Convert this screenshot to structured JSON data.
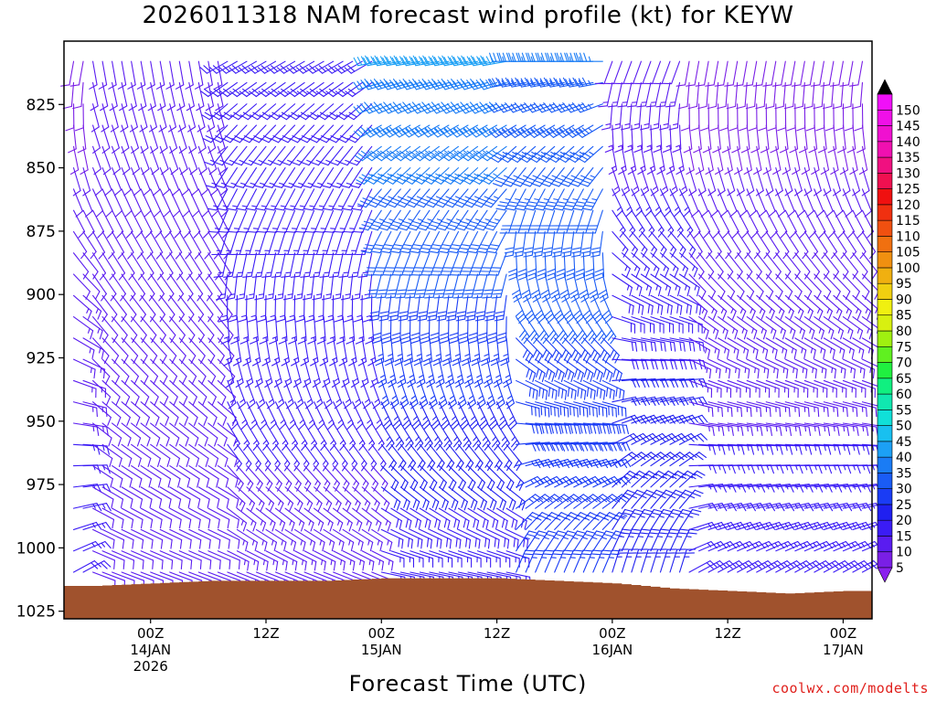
{
  "title": "2026011318 NAM forecast wind profile (kt) for KEYW",
  "xlabel": "Forecast Time (UTC)",
  "credit": "coolwx.com/modelts",
  "chart_data": {
    "type": "wind_profile_timeseries",
    "y_axis": {
      "quantity": "pressure (hPa)",
      "reversed": true,
      "ticks": [
        825,
        850,
        875,
        900,
        925,
        950,
        975,
        1000,
        1025
      ],
      "range": [
        800,
        1028
      ]
    },
    "x_axis": {
      "quantity": "forecast hour",
      "range": [
        -3,
        81
      ],
      "ticks": [
        {
          "hour": 6,
          "lines": [
            "00Z",
            "14JAN",
            "2026"
          ]
        },
        {
          "hour": 18,
          "lines": [
            "12Z"
          ]
        },
        {
          "hour": 30,
          "lines": [
            "00Z",
            "15JAN"
          ]
        },
        {
          "hour": 42,
          "lines": [
            "12Z"
          ]
        },
        {
          "hour": 54,
          "lines": [
            "00Z",
            "16JAN"
          ]
        },
        {
          "hour": 66,
          "lines": [
            "12Z"
          ]
        },
        {
          "hour": 78,
          "lines": [
            "00Z",
            "17JAN"
          ]
        }
      ]
    },
    "surface_pressure": [
      {
        "hour": 0,
        "p": 1015
      },
      {
        "hour": 6,
        "p": 1014
      },
      {
        "hour": 12,
        "p": 1013
      },
      {
        "hour": 18,
        "p": 1013
      },
      {
        "hour": 24,
        "p": 1013
      },
      {
        "hour": 30,
        "p": 1012
      },
      {
        "hour": 36,
        "p": 1012
      },
      {
        "hour": 42,
        "p": 1012
      },
      {
        "hour": 48,
        "p": 1013
      },
      {
        "hour": 54,
        "p": 1014
      },
      {
        "hour": 60,
        "p": 1016
      },
      {
        "hour": 66,
        "p": 1017
      },
      {
        "hour": 72,
        "p": 1018
      },
      {
        "hour": 78,
        "p": 1017
      },
      {
        "hour": 81,
        "p": 1017
      }
    ],
    "wind_regimes": [
      {
        "from_hour": 0,
        "to_hour": 14,
        "low_dir": 110,
        "high_dir": 170,
        "low_spd": 12,
        "high_spd": 10
      },
      {
        "from_hour": 14,
        "to_hour": 30,
        "low_dir": 110,
        "high_dir": 240,
        "low_spd": 14,
        "high_spd": 18
      },
      {
        "from_hour": 30,
        "to_hour": 44,
        "low_dir": 100,
        "high_dir": 260,
        "low_spd": 16,
        "high_spd": 40
      },
      {
        "from_hour": 44,
        "to_hour": 54,
        "low_dir": 20,
        "high_dir": 270,
        "low_spd": 25,
        "high_spd": 35
      },
      {
        "from_hour": 54,
        "to_hour": 62,
        "low_dir": 15,
        "high_dir": 200,
        "low_spd": 25,
        "high_spd": 12
      },
      {
        "from_hour": 62,
        "to_hour": 81,
        "low_dir": 60,
        "high_dir": 190,
        "low_spd": 18,
        "high_spd": 8
      }
    ],
    "colorbar": {
      "labels": [
        5,
        10,
        15,
        20,
        25,
        30,
        35,
        40,
        45,
        50,
        55,
        60,
        65,
        70,
        75,
        80,
        85,
        90,
        95,
        100,
        105,
        110,
        115,
        120,
        125,
        130,
        135,
        140,
        145,
        150
      ],
      "colors": [
        "#7a1fe6",
        "#5a1cf0",
        "#3b1cf5",
        "#2020f0",
        "#1a3cf5",
        "#1a5cf5",
        "#1a7cf5",
        "#1ca0f5",
        "#18c0f0",
        "#10e0d8",
        "#10e8b0",
        "#10f080",
        "#20f040",
        "#60f020",
        "#a0f010",
        "#d8f010",
        "#f0f010",
        "#f0d010",
        "#f0b010",
        "#f09010",
        "#f07010",
        "#f05010",
        "#f03010",
        "#f01010",
        "#f01050",
        "#f01080",
        "#f010b0",
        "#f010d0",
        "#f010e8",
        "#f010f8"
      ],
      "min_arrow_color": "#8a20ee",
      "max_arrow_color": "#000000"
    },
    "ground_color": "#a0522d"
  }
}
